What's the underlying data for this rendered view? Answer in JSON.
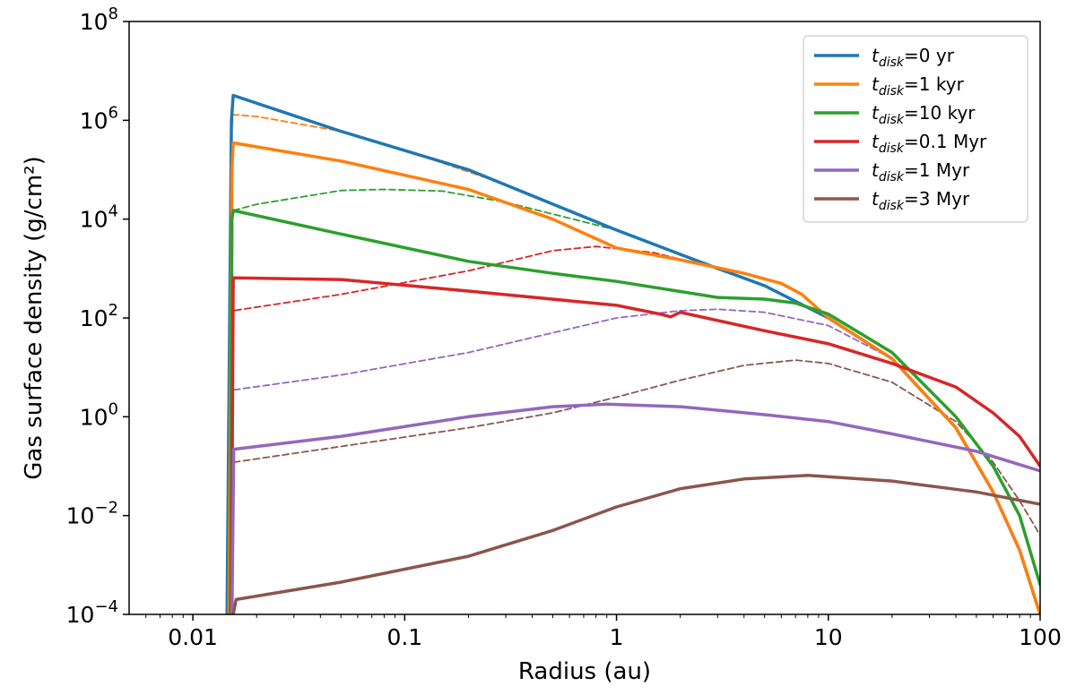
{
  "chart_data": {
    "type": "line",
    "xlabel": "Radius (au)",
    "ylabel": "Gas surface density (g/cm²)",
    "x_scale": "log",
    "y_scale": "log",
    "xlim": [
      0.005,
      100
    ],
    "ylim": [
      0.0001,
      100000000
    ],
    "x_ticks": [
      {
        "value": 0.01,
        "label": "0.01"
      },
      {
        "value": 0.1,
        "label": "0.1"
      },
      {
        "value": 1,
        "label": "1"
      },
      {
        "value": 10,
        "label": "10"
      },
      {
        "value": 100,
        "label": "100"
      }
    ],
    "y_ticks": [
      {
        "value": 0.0001,
        "base": "10",
        "exp": "−4"
      },
      {
        "value": 0.01,
        "base": "10",
        "exp": "−2"
      },
      {
        "value": 1,
        "base": "10",
        "exp": "0"
      },
      {
        "value": 100,
        "base": "10",
        "exp": "2"
      },
      {
        "value": 10000,
        "base": "10",
        "exp": "4"
      },
      {
        "value": 1000000,
        "base": "10",
        "exp": "6"
      },
      {
        "value": 100000000,
        "base": "10",
        "exp": "8"
      }
    ],
    "grid": false,
    "legend_position": "top-right",
    "series": [
      {
        "name": "t_disk=0 yr",
        "legend_sub": "disk",
        "legend_value": "=0 yr",
        "color": "#1f77b4",
        "style": "solid",
        "x": [
          0.0145,
          0.0152,
          0.0155,
          0.05,
          0.2,
          1,
          3,
          5,
          10,
          20,
          40,
          60,
          80,
          100
        ],
        "y": [
          0.0001,
          1000000,
          3200000,
          600000,
          100000,
          6000,
          1000,
          450,
          100,
          15,
          0.6,
          0.03,
          0.002,
          0.0001
        ]
      },
      {
        "name": "t_disk=1 kyr",
        "legend_sub": "disk",
        "legend_value": "=1 kyr",
        "color": "#ff7f0e",
        "style": "solid",
        "x": [
          0.0148,
          0.0153,
          0.0155,
          0.05,
          0.2,
          0.5,
          1,
          2,
          4,
          6,
          7.5,
          10,
          20,
          40,
          60,
          80,
          100
        ],
        "y": [
          0.0001,
          100000,
          350000,
          150000,
          40000,
          10000,
          2600,
          1500,
          800,
          500,
          300,
          100,
          15,
          0.6,
          0.03,
          0.002,
          0.0001
        ]
      },
      {
        "name": "t_disk=1 kyr (dashed)",
        "color": "#ff7f0e",
        "style": "dashed",
        "x": [
          0.0152,
          0.0155,
          0.02,
          0.05,
          0.1,
          0.3,
          1,
          3,
          5,
          10,
          20,
          40,
          60,
          80,
          100
        ],
        "y": [
          500000,
          1300000,
          1200000,
          600000,
          250000,
          50000,
          6000,
          1000,
          450,
          100,
          15,
          0.6,
          0.03,
          0.002,
          0.0001
        ]
      },
      {
        "name": "t_disk=10 kyr",
        "legend_sub": "disk",
        "legend_value": "=10 kyr",
        "color": "#2ca02c",
        "style": "solid",
        "x": [
          0.015,
          0.0153,
          0.0155,
          0.05,
          0.2,
          0.5,
          1,
          3,
          5,
          7,
          10,
          20,
          40,
          60,
          80,
          100
        ],
        "y": [
          0.0001,
          10000,
          15000,
          5000,
          1400,
          800,
          550,
          260,
          240,
          200,
          120,
          20,
          1,
          0.1,
          0.01,
          0.0004
        ]
      },
      {
        "name": "t_disk=10 kyr (dashed)",
        "color": "#2ca02c",
        "style": "dashed",
        "x": [
          0.0155,
          0.02,
          0.05,
          0.08,
          0.15,
          0.3,
          1,
          3,
          5,
          10,
          20,
          40,
          60,
          80,
          100
        ],
        "y": [
          15000,
          20000,
          38000,
          40000,
          37000,
          22000,
          6000,
          1000,
          450,
          100,
          15,
          0.6,
          0.03,
          0.002,
          0.0001
        ]
      },
      {
        "name": "t_disk=0.1 Myr",
        "legend_sub": "disk",
        "legend_value": "=0.1 Myr",
        "color": "#d62728",
        "style": "solid",
        "x": [
          0.0152,
          0.0155,
          0.05,
          0.2,
          1,
          1.6,
          1.8,
          2,
          5,
          10,
          20,
          40,
          60,
          80,
          100
        ],
        "y": [
          0.0001,
          650,
          600,
          350,
          180,
          120,
          105,
          130,
          55,
          30,
          12,
          4,
          1.2,
          0.4,
          0.1
        ]
      },
      {
        "name": "t_disk=0.1 Myr (dashed)",
        "color": "#d62728",
        "style": "dashed",
        "x": [
          0.0152,
          0.0155,
          0.05,
          0.2,
          0.5,
          0.8,
          1.5,
          3,
          5,
          10,
          20,
          40,
          60,
          80,
          100
        ],
        "y": [
          0.0001,
          140,
          300,
          900,
          2300,
          2800,
          2100,
          1000,
          450,
          100,
          15,
          0.6,
          0.03,
          0.002,
          0.0001
        ]
      },
      {
        "name": "t_disk=1 Myr",
        "legend_sub": "disk",
        "legend_value": "=1 Myr",
        "color": "#9467bd",
        "style": "solid",
        "x": [
          0.0153,
          0.0156,
          0.05,
          0.2,
          0.5,
          0.9,
          2,
          5,
          10,
          20,
          50,
          100
        ],
        "y": [
          0.0001,
          0.22,
          0.4,
          1,
          1.6,
          1.8,
          1.6,
          1.1,
          0.8,
          0.45,
          0.2,
          0.08
        ]
      },
      {
        "name": "t_disk=1 Myr (dashed)",
        "color": "#9467bd",
        "style": "dashed",
        "x": [
          0.0156,
          0.05,
          0.2,
          0.5,
          1,
          2,
          3,
          5,
          10,
          20,
          40,
          60,
          80,
          100
        ],
        "y": [
          3.5,
          7,
          20,
          50,
          100,
          140,
          150,
          130,
          70,
          15,
          0.6,
          0.03,
          0.002,
          0.0001
        ]
      },
      {
        "name": "t_disk=3 Myr",
        "legend_sub": "disk",
        "legend_value": "=3 Myr",
        "color": "#8c564b",
        "style": "solid",
        "x": [
          0.0155,
          0.016,
          0.05,
          0.2,
          0.5,
          1,
          2,
          4,
          8,
          20,
          50,
          100
        ],
        "y": [
          0.0001,
          0.0002,
          0.00045,
          0.0015,
          0.005,
          0.015,
          0.035,
          0.055,
          0.065,
          0.05,
          0.03,
          0.017
        ]
      },
      {
        "name": "t_disk=3 Myr (dashed)",
        "color": "#8c564b",
        "style": "dashed",
        "x": [
          0.0156,
          0.05,
          0.2,
          0.5,
          1,
          2,
          4,
          7,
          10,
          20,
          40,
          60,
          80,
          100
        ],
        "y": [
          0.12,
          0.25,
          0.6,
          1.2,
          2.5,
          5.5,
          11,
          14,
          12,
          5,
          0.8,
          0.12,
          0.02,
          0.004
        ]
      }
    ]
  }
}
